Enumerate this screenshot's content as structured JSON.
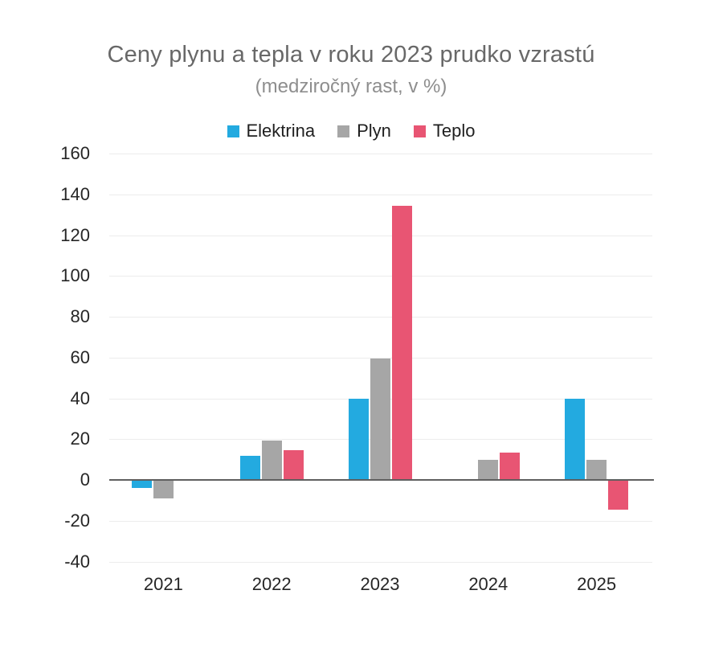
{
  "chart_data": {
    "type": "bar",
    "title": "Ceny plynu a tepla v roku 2023 prudko vzrastú",
    "subtitle": "(medziročný rast, v %)",
    "categories": [
      "2021",
      "2022",
      "2023",
      "2024",
      "2025"
    ],
    "series": [
      {
        "name": "Elektrina",
        "color": "#23aae0",
        "values": [
          -4,
          12,
          40,
          0,
          40
        ]
      },
      {
        "name": "Plyn",
        "color": "#a6a6a6",
        "values": [
          -9,
          19.5,
          59.5,
          10,
          10
        ]
      },
      {
        "name": "Teplo",
        "color": "#e85573",
        "values": [
          0,
          14.5,
          134.5,
          13.5,
          -14.5
        ]
      }
    ],
    "ylim": [
      -40,
      160
    ],
    "ytick_step": 20,
    "ytick_labels": [
      "160",
      "140",
      "120",
      "100",
      "80",
      "60",
      "40",
      "20",
      "0",
      "-20",
      "-40"
    ],
    "grid": true,
    "legend_position": "top",
    "colors": {
      "title_text": "#686868",
      "subtitle_text": "#8e8e8e",
      "axis_text": "#262626",
      "legend_text": "#1f1f1f",
      "gridline": "#ececec",
      "axis_line": "#5f5f5f",
      "background": "#ffffff"
    }
  }
}
